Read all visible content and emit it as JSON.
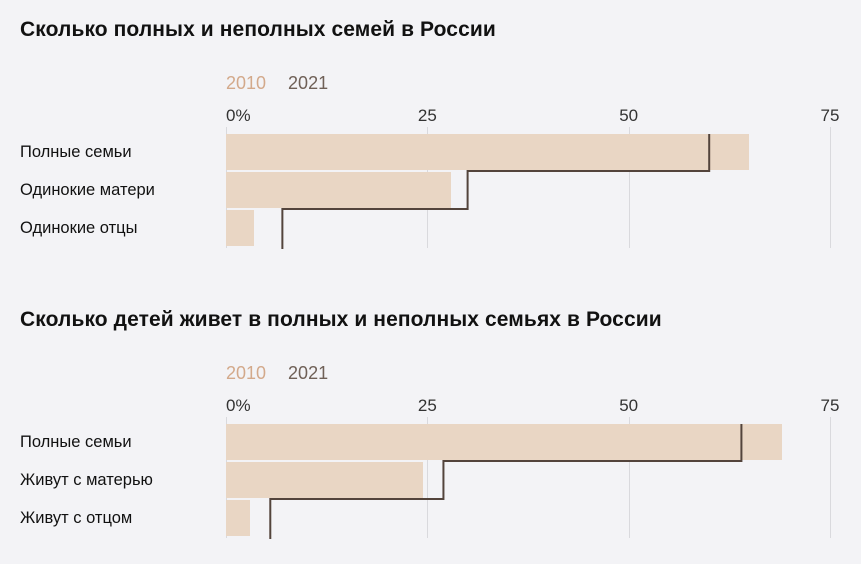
{
  "colors": {
    "background": "#f3f3f6",
    "bar_2010": "#e9d6c4",
    "line_2021": "#53443c",
    "legend_2010": "#d3a98b",
    "legend_2021": "#6f6057",
    "grid": "#d9d9dd"
  },
  "charts": [
    {
      "title": "Сколько полных и неполных семей в России",
      "legend": [
        {
          "label": "2010"
        },
        {
          "label": "2021"
        }
      ],
      "chart_data": {
        "type": "bar",
        "orientation": "horizontal",
        "title": "Сколько полных и неполных семей в России",
        "categories": [
          "Полные семьи",
          "Одинокие матери",
          "Одинокие отцы"
        ],
        "series": [
          {
            "name": "2010",
            "style": "filled-bar",
            "values": [
              65,
              28,
              3.5
            ]
          },
          {
            "name": "2021",
            "style": "step-line",
            "values": [
              60,
              30,
              7
            ]
          }
        ],
        "unit": "%",
        "xlim": [
          0,
          75
        ],
        "ticks": [
          {
            "label": "0%",
            "value": 0
          },
          {
            "label": "25",
            "value": 25
          },
          {
            "label": "50",
            "value": 50
          },
          {
            "label": "75",
            "value": 75
          }
        ],
        "legend_position": "top",
        "grid": "vertical"
      }
    },
    {
      "title": "Сколько детей живет в полных и неполных семьях в России",
      "legend": [
        {
          "label": "2010"
        },
        {
          "label": "2021"
        }
      ],
      "chart_data": {
        "type": "bar",
        "orientation": "horizontal",
        "title": "Сколько детей живет в полных и неполных семьях в России",
        "categories": [
          "Полные семьи",
          "Живут с матерью",
          "Живут с отцом"
        ],
        "series": [
          {
            "name": "2010",
            "style": "filled-bar",
            "values": [
              69,
              24.5,
              3
            ]
          },
          {
            "name": "2021",
            "style": "step-line",
            "values": [
              64,
              27,
              5.5
            ]
          }
        ],
        "unit": "%",
        "xlim": [
          0,
          75
        ],
        "ticks": [
          {
            "label": "0%",
            "value": 0
          },
          {
            "label": "25",
            "value": 25
          },
          {
            "label": "50",
            "value": 50
          },
          {
            "label": "75",
            "value": 75
          }
        ],
        "legend_position": "top",
        "grid": "vertical"
      }
    }
  ]
}
